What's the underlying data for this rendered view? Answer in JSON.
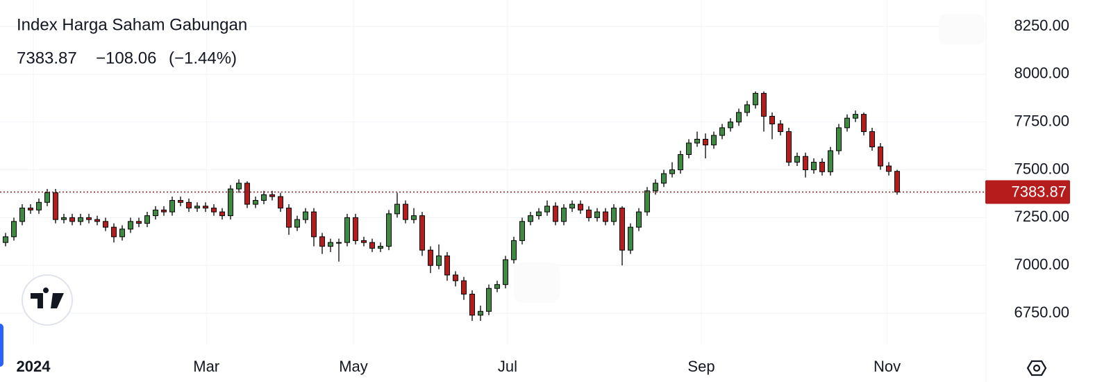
{
  "chart_data": {
    "type": "candlestick",
    "title": "Index Harga Saham Gabungan",
    "quote": {
      "last": 7383.87,
      "change": {
        "value": -108.06,
        "label": "−108.06"
      },
      "change_pct": {
        "value": -1.44,
        "label": "(−1.44%)"
      }
    },
    "up_color": "#3d8b40",
    "down_color": "#b71c1c",
    "grid": true,
    "ylim": [
      6583,
      8388
    ],
    "yticks": [
      {
        "value": 6750,
        "label": "6750.00"
      },
      {
        "value": 7000,
        "label": "7000.00"
      },
      {
        "value": 7250,
        "label": "7250.00"
      },
      {
        "value": 7500,
        "label": "7500.00"
      },
      {
        "value": 7750,
        "label": "7750.00"
      },
      {
        "value": 8000,
        "label": "8000.00"
      },
      {
        "value": 8250,
        "label": "8250.00"
      }
    ],
    "xlim": [
      -0.667,
      117.667
    ],
    "xticks": [
      {
        "value": 3.33,
        "label": "2024"
      },
      {
        "value": 24.1,
        "label": "Mar"
      },
      {
        "value": 41.75,
        "label": "May"
      },
      {
        "value": 60.25,
        "label": "Jul"
      },
      {
        "value": 83.5,
        "label": "Sep"
      },
      {
        "value": 105.8,
        "label": "Nov"
      }
    ],
    "open": [
      7120,
      7150,
      7230,
      7300,
      7290,
      7330,
      7380,
      7240,
      7250,
      7230,
      7250,
      7240,
      7230,
      7200,
      7150,
      7190,
      7230,
      7220,
      7260,
      7290,
      7280,
      7340,
      7330,
      7300,
      7310,
      7300,
      7280,
      7260,
      7400,
      7430,
      7320,
      7340,
      7370,
      7360,
      7300,
      7200,
      7240,
      7280,
      7150,
      7100,
      7120,
      7120,
      7250,
      7130,
      7120,
      7090,
      7100,
      7270,
      7320,
      7240,
      7260,
      7080,
      7000,
      7050,
      6950,
      6920,
      6850,
      6740,
      6760,
      6880,
      6900,
      7030,
      7130,
      7230,
      7260,
      7280,
      7310,
      7230,
      7300,
      7320,
      7290,
      7250,
      7280,
      7230,
      7300,
      7080,
      7200,
      7280,
      7390,
      7430,
      7480,
      7500,
      7580,
      7640,
      7660,
      7630,
      7680,
      7720,
      7750,
      7800,
      7840,
      7900,
      7780,
      7740,
      7700,
      7540,
      7570,
      7500,
      7540,
      7490,
      7600,
      7720,
      7770,
      7790,
      7700,
      7620,
      7520,
      7491.93
    ],
    "high": [
      7170,
      7250,
      7320,
      7320,
      7350,
      7400,
      7400,
      7270,
      7270,
      7270,
      7270,
      7260,
      7250,
      7220,
      7210,
      7250,
      7250,
      7280,
      7310,
      7310,
      7360,
      7360,
      7350,
      7330,
      7330,
      7320,
      7300,
      7420,
      7450,
      7440,
      7360,
      7390,
      7390,
      7380,
      7320,
      7260,
      7300,
      7300,
      7170,
      7140,
      7140,
      7270,
      7270,
      7150,
      7140,
      7120,
      7290,
      7380,
      7340,
      7300,
      7280,
      7100,
      7110,
      7070,
      6970,
      6940,
      6870,
      6790,
      6900,
      6920,
      7050,
      7150,
      7250,
      7280,
      7300,
      7340,
      7330,
      7320,
      7340,
      7340,
      7310,
      7300,
      7300,
      7320,
      7310,
      7220,
      7300,
      7410,
      7450,
      7500,
      7540,
      7600,
      7660,
      7700,
      7690,
      7700,
      7740,
      7770,
      7820,
      7860,
      7910,
      7910,
      7800,
      7760,
      7720,
      7590,
      7590,
      7560,
      7560,
      7620,
      7740,
      7790,
      7810,
      7800,
      7720,
      7640,
      7540,
      7500
    ],
    "low": [
      7100,
      7130,
      7210,
      7270,
      7270,
      7310,
      7220,
      7220,
      7210,
      7210,
      7220,
      7210,
      7180,
      7120,
      7130,
      7170,
      7200,
      7200,
      7240,
      7260,
      7260,
      7310,
      7280,
      7280,
      7280,
      7260,
      7240,
      7240,
      7380,
      7300,
      7300,
      7320,
      7340,
      7280,
      7160,
      7180,
      7220,
      7100,
      7060,
      7070,
      7020,
      7100,
      7110,
      7100,
      7070,
      7070,
      7080,
      7250,
      7220,
      7220,
      7050,
      6960,
      6980,
      6920,
      6890,
      6820,
      6710,
      6710,
      6740,
      6860,
      6880,
      7010,
      7110,
      7210,
      7240,
      7260,
      7210,
      7210,
      7280,
      7270,
      7230,
      7230,
      7210,
      7210,
      7000,
      7060,
      7180,
      7260,
      7370,
      7410,
      7460,
      7480,
      7560,
      7620,
      7560,
      7610,
      7660,
      7700,
      7730,
      7780,
      7820,
      7700,
      7660,
      7680,
      7520,
      7520,
      7460,
      7480,
      7470,
      7470,
      7580,
      7700,
      7750,
      7680,
      7600,
      7500,
      7470,
      7370
    ],
    "close": [
      7150,
      7230,
      7300,
      7290,
      7330,
      7380,
      7240,
      7250,
      7230,
      7250,
      7240,
      7230,
      7200,
      7150,
      7190,
      7230,
      7220,
      7260,
      7290,
      7280,
      7340,
      7330,
      7300,
      7310,
      7300,
      7280,
      7260,
      7400,
      7430,
      7320,
      7340,
      7370,
      7360,
      7300,
      7200,
      7240,
      7280,
      7150,
      7100,
      7120,
      7120,
      7250,
      7130,
      7120,
      7090,
      7100,
      7270,
      7320,
      7240,
      7260,
      7080,
      7000,
      7050,
      6950,
      6920,
      6850,
      6740,
      6760,
      6880,
      6900,
      7030,
      7130,
      7230,
      7260,
      7280,
      7310,
      7230,
      7300,
      7320,
      7290,
      7250,
      7280,
      7230,
      7300,
      7080,
      7200,
      7280,
      7390,
      7430,
      7480,
      7500,
      7580,
      7640,
      7660,
      7630,
      7680,
      7720,
      7750,
      7800,
      7840,
      7900,
      7780,
      7740,
      7700,
      7540,
      7570,
      7500,
      7540,
      7490,
      7600,
      7720,
      7770,
      7790,
      7700,
      7620,
      7520,
      7491.93,
      7383.87
    ]
  }
}
